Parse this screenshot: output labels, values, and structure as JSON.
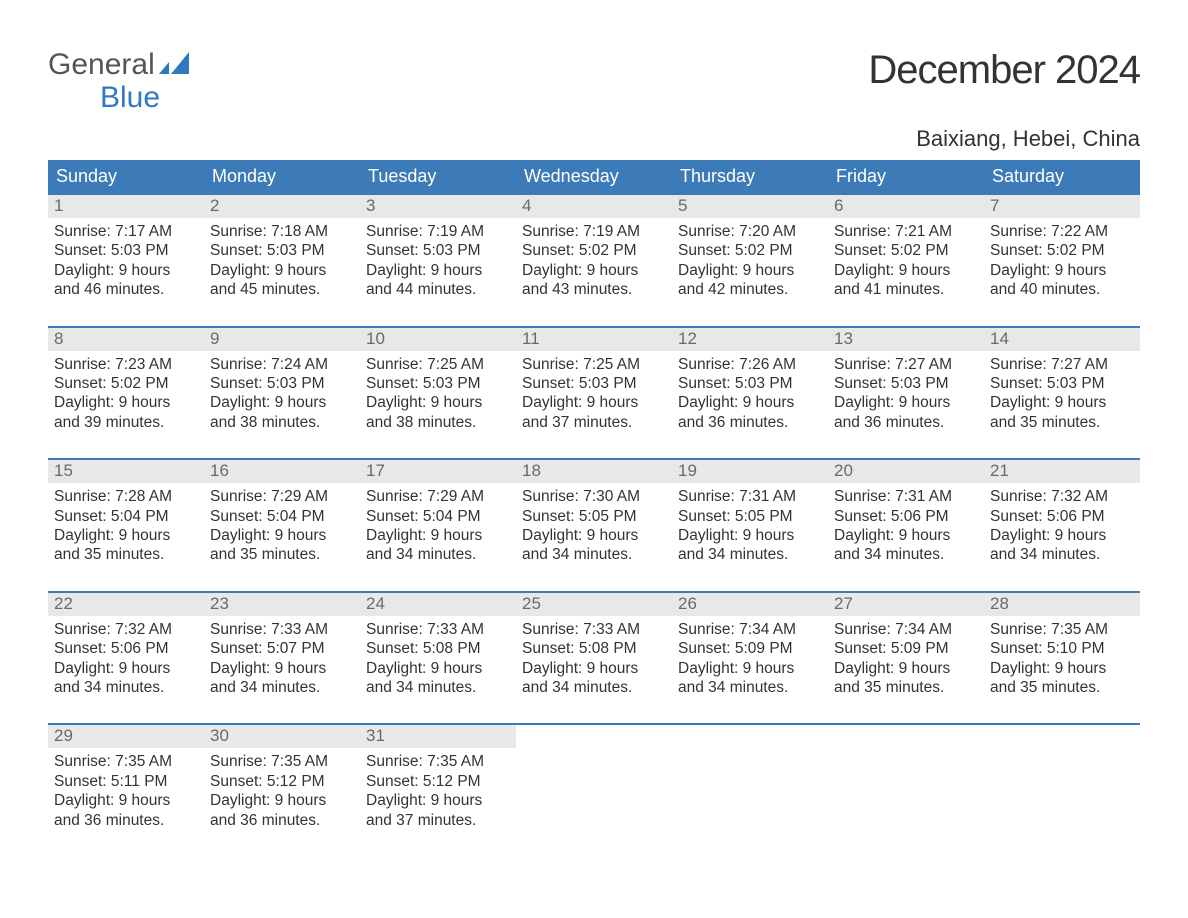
{
  "brand": {
    "line1": "General",
    "line2": "Blue",
    "line1_color": "#555555",
    "line2_color": "#2f7abf",
    "mark_color": "#2f7abf"
  },
  "title": "December 2024",
  "subtitle": "Baixiang, Hebei, China",
  "colors": {
    "header_bg": "#3d7ab8",
    "header_fg": "#ffffff",
    "daynum_bg": "#e8e8e8",
    "daynum_fg": "#6a6a6a",
    "body_fg": "#333333",
    "week_rule": "#3d7ab8",
    "page_bg": "#ffffff"
  },
  "font_sizes": {
    "title": 40,
    "subtitle": 22,
    "header": 18,
    "daynum": 17,
    "body": 15.5,
    "logo": 30
  },
  "weekdays": [
    "Sunday",
    "Monday",
    "Tuesday",
    "Wednesday",
    "Thursday",
    "Friday",
    "Saturday"
  ],
  "weeks": [
    [
      {
        "n": "1",
        "sr": "Sunrise: 7:17 AM",
        "ss": "Sunset: 5:03 PM",
        "d1": "Daylight: 9 hours",
        "d2": "and 46 minutes."
      },
      {
        "n": "2",
        "sr": "Sunrise: 7:18 AM",
        "ss": "Sunset: 5:03 PM",
        "d1": "Daylight: 9 hours",
        "d2": "and 45 minutes."
      },
      {
        "n": "3",
        "sr": "Sunrise: 7:19 AM",
        "ss": "Sunset: 5:03 PM",
        "d1": "Daylight: 9 hours",
        "d2": "and 44 minutes."
      },
      {
        "n": "4",
        "sr": "Sunrise: 7:19 AM",
        "ss": "Sunset: 5:02 PM",
        "d1": "Daylight: 9 hours",
        "d2": "and 43 minutes."
      },
      {
        "n": "5",
        "sr": "Sunrise: 7:20 AM",
        "ss": "Sunset: 5:02 PM",
        "d1": "Daylight: 9 hours",
        "d2": "and 42 minutes."
      },
      {
        "n": "6",
        "sr": "Sunrise: 7:21 AM",
        "ss": "Sunset: 5:02 PM",
        "d1": "Daylight: 9 hours",
        "d2": "and 41 minutes."
      },
      {
        "n": "7",
        "sr": "Sunrise: 7:22 AM",
        "ss": "Sunset: 5:02 PM",
        "d1": "Daylight: 9 hours",
        "d2": "and 40 minutes."
      }
    ],
    [
      {
        "n": "8",
        "sr": "Sunrise: 7:23 AM",
        "ss": "Sunset: 5:02 PM",
        "d1": "Daylight: 9 hours",
        "d2": "and 39 minutes."
      },
      {
        "n": "9",
        "sr": "Sunrise: 7:24 AM",
        "ss": "Sunset: 5:03 PM",
        "d1": "Daylight: 9 hours",
        "d2": "and 38 minutes."
      },
      {
        "n": "10",
        "sr": "Sunrise: 7:25 AM",
        "ss": "Sunset: 5:03 PM",
        "d1": "Daylight: 9 hours",
        "d2": "and 38 minutes."
      },
      {
        "n": "11",
        "sr": "Sunrise: 7:25 AM",
        "ss": "Sunset: 5:03 PM",
        "d1": "Daylight: 9 hours",
        "d2": "and 37 minutes."
      },
      {
        "n": "12",
        "sr": "Sunrise: 7:26 AM",
        "ss": "Sunset: 5:03 PM",
        "d1": "Daylight: 9 hours",
        "d2": "and 36 minutes."
      },
      {
        "n": "13",
        "sr": "Sunrise: 7:27 AM",
        "ss": "Sunset: 5:03 PM",
        "d1": "Daylight: 9 hours",
        "d2": "and 36 minutes."
      },
      {
        "n": "14",
        "sr": "Sunrise: 7:27 AM",
        "ss": "Sunset: 5:03 PM",
        "d1": "Daylight: 9 hours",
        "d2": "and 35 minutes."
      }
    ],
    [
      {
        "n": "15",
        "sr": "Sunrise: 7:28 AM",
        "ss": "Sunset: 5:04 PM",
        "d1": "Daylight: 9 hours",
        "d2": "and 35 minutes."
      },
      {
        "n": "16",
        "sr": "Sunrise: 7:29 AM",
        "ss": "Sunset: 5:04 PM",
        "d1": "Daylight: 9 hours",
        "d2": "and 35 minutes."
      },
      {
        "n": "17",
        "sr": "Sunrise: 7:29 AM",
        "ss": "Sunset: 5:04 PM",
        "d1": "Daylight: 9 hours",
        "d2": "and 34 minutes."
      },
      {
        "n": "18",
        "sr": "Sunrise: 7:30 AM",
        "ss": "Sunset: 5:05 PM",
        "d1": "Daylight: 9 hours",
        "d2": "and 34 minutes."
      },
      {
        "n": "19",
        "sr": "Sunrise: 7:31 AM",
        "ss": "Sunset: 5:05 PM",
        "d1": "Daylight: 9 hours",
        "d2": "and 34 minutes."
      },
      {
        "n": "20",
        "sr": "Sunrise: 7:31 AM",
        "ss": "Sunset: 5:06 PM",
        "d1": "Daylight: 9 hours",
        "d2": "and 34 minutes."
      },
      {
        "n": "21",
        "sr": "Sunrise: 7:32 AM",
        "ss": "Sunset: 5:06 PM",
        "d1": "Daylight: 9 hours",
        "d2": "and 34 minutes."
      }
    ],
    [
      {
        "n": "22",
        "sr": "Sunrise: 7:32 AM",
        "ss": "Sunset: 5:06 PM",
        "d1": "Daylight: 9 hours",
        "d2": "and 34 minutes."
      },
      {
        "n": "23",
        "sr": "Sunrise: 7:33 AM",
        "ss": "Sunset: 5:07 PM",
        "d1": "Daylight: 9 hours",
        "d2": "and 34 minutes."
      },
      {
        "n": "24",
        "sr": "Sunrise: 7:33 AM",
        "ss": "Sunset: 5:08 PM",
        "d1": "Daylight: 9 hours",
        "d2": "and 34 minutes."
      },
      {
        "n": "25",
        "sr": "Sunrise: 7:33 AM",
        "ss": "Sunset: 5:08 PM",
        "d1": "Daylight: 9 hours",
        "d2": "and 34 minutes."
      },
      {
        "n": "26",
        "sr": "Sunrise: 7:34 AM",
        "ss": "Sunset: 5:09 PM",
        "d1": "Daylight: 9 hours",
        "d2": "and 34 minutes."
      },
      {
        "n": "27",
        "sr": "Sunrise: 7:34 AM",
        "ss": "Sunset: 5:09 PM",
        "d1": "Daylight: 9 hours",
        "d2": "and 35 minutes."
      },
      {
        "n": "28",
        "sr": "Sunrise: 7:35 AM",
        "ss": "Sunset: 5:10 PM",
        "d1": "Daylight: 9 hours",
        "d2": "and 35 minutes."
      }
    ],
    [
      {
        "n": "29",
        "sr": "Sunrise: 7:35 AM",
        "ss": "Sunset: 5:11 PM",
        "d1": "Daylight: 9 hours",
        "d2": "and 36 minutes."
      },
      {
        "n": "30",
        "sr": "Sunrise: 7:35 AM",
        "ss": "Sunset: 5:12 PM",
        "d1": "Daylight: 9 hours",
        "d2": "and 36 minutes."
      },
      {
        "n": "31",
        "sr": "Sunrise: 7:35 AM",
        "ss": "Sunset: 5:12 PM",
        "d1": "Daylight: 9 hours",
        "d2": "and 37 minutes."
      },
      null,
      null,
      null,
      null
    ]
  ]
}
